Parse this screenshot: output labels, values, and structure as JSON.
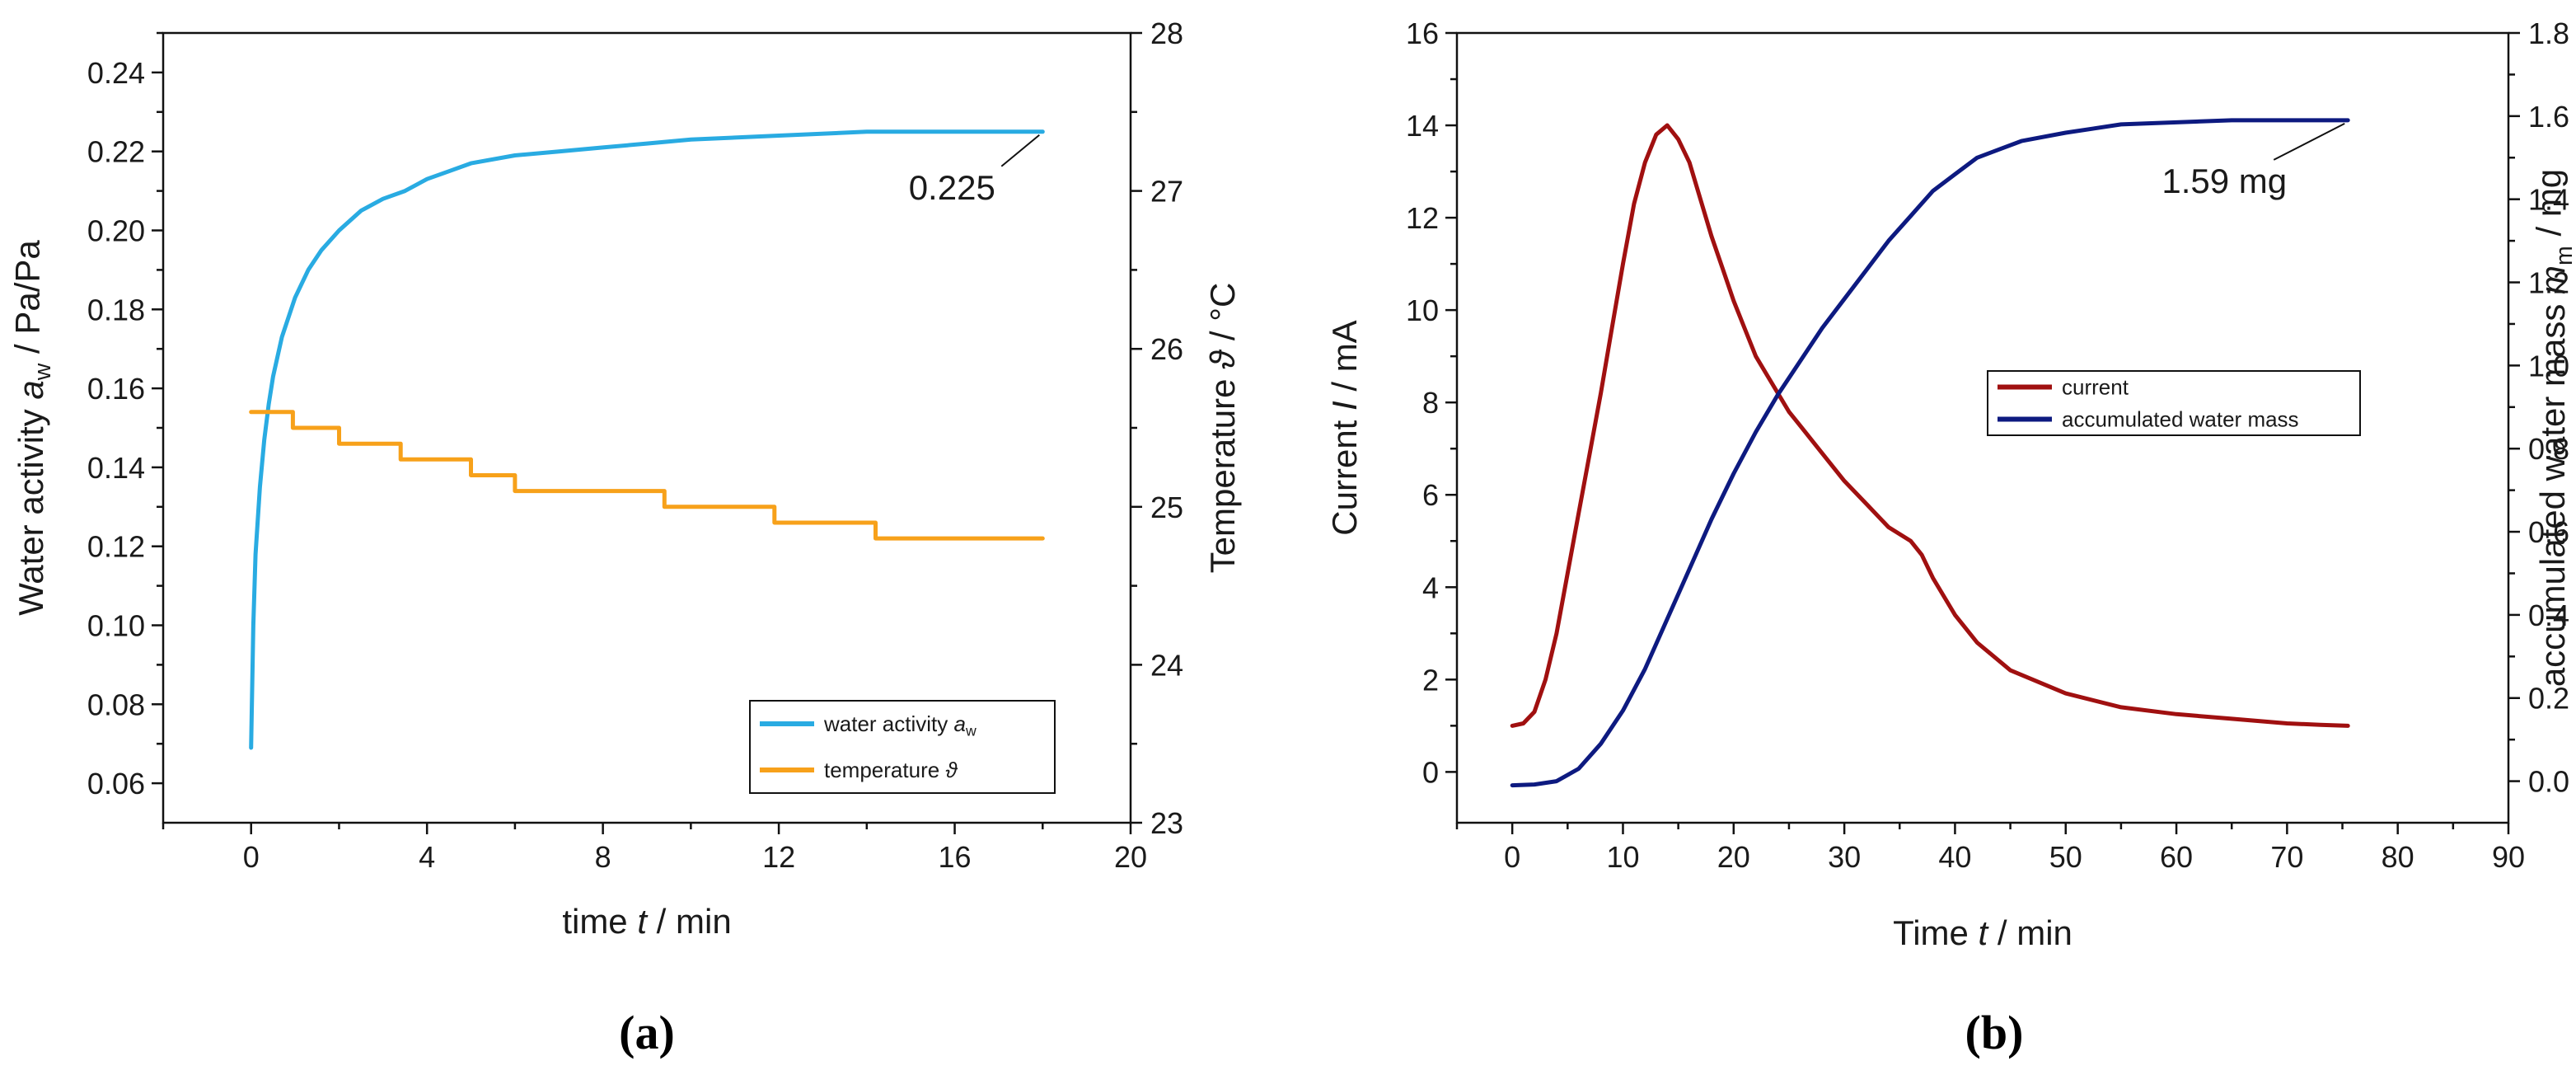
{
  "chart_data": [
    {
      "id": "a",
      "type": "line",
      "panel_label": "(a)",
      "xlabel": {
        "pre": "time ",
        "var": "t",
        "post": " / min"
      },
      "ylabel_left": {
        "pre": "Water activity ",
        "var": "a",
        "sub": "w",
        "post": " / Pa/Pa"
      },
      "ylabel_right": {
        "pre": "Temperature ",
        "var": "ϑ",
        "post": " / °C"
      },
      "xlim": [
        -2,
        20
      ],
      "ylim_left": [
        0.05,
        0.25
      ],
      "ylim_right": [
        23,
        28
      ],
      "xticks": [
        0,
        4,
        8,
        12,
        16,
        20
      ],
      "xtick_labels": [
        "0",
        "4",
        "8",
        "12",
        "16",
        "20"
      ],
      "yticks_left": [
        0.06,
        0.08,
        0.1,
        0.12,
        0.14,
        0.16,
        0.18,
        0.2,
        0.22,
        0.24
      ],
      "ytick_labels_left": [
        "0.06",
        "0.08",
        "0.10",
        "0.12",
        "0.14",
        "0.16",
        "0.18",
        "0.20",
        "0.22",
        "0.24"
      ],
      "yticks_right": [
        23,
        24,
        25,
        26,
        27,
        28
      ],
      "ytick_labels_right": [
        "23",
        "24",
        "25",
        "26",
        "27",
        "28"
      ],
      "legend_position": "bottom-right",
      "series": [
        {
          "name": "water activity",
          "legend": {
            "pre": "water activity ",
            "var": "a",
            "sub": "w"
          },
          "axis": "left",
          "color": "#29abe2",
          "x": [
            0,
            0.05,
            0.1,
            0.2,
            0.3,
            0.4,
            0.5,
            0.7,
            1.0,
            1.3,
            1.6,
            2.0,
            2.5,
            3.0,
            3.5,
            4.0,
            4.5,
            5.0,
            6.0,
            7.0,
            8.0,
            9.0,
            10.0,
            12.0,
            14.0,
            16.0,
            18.0
          ],
          "y": [
            0.069,
            0.1,
            0.118,
            0.135,
            0.147,
            0.156,
            0.163,
            0.173,
            0.183,
            0.19,
            0.195,
            0.2,
            0.205,
            0.208,
            0.21,
            0.213,
            0.215,
            0.217,
            0.219,
            0.22,
            0.221,
            0.222,
            0.223,
            0.224,
            0.225,
            0.225,
            0.225
          ]
        },
        {
          "name": "temperature",
          "legend": {
            "pre": "temperature ",
            "var": "ϑ",
            "sub": ""
          },
          "axis": "right",
          "color": "#f7a11a",
          "x": [
            0,
            0.95,
            0.95,
            2.0,
            2.0,
            3.4,
            3.4,
            5.0,
            5.0,
            6.0,
            6.0,
            9.4,
            9.4,
            11.9,
            11.9,
            14.2,
            14.2,
            18.0
          ],
          "y": [
            25.6,
            25.6,
            25.5,
            25.5,
            25.4,
            25.4,
            25.3,
            25.3,
            25.2,
            25.2,
            25.1,
            25.1,
            25.0,
            25.0,
            24.9,
            24.9,
            24.8,
            24.8
          ]
        }
      ],
      "annotations": [
        {
          "text": "0.225",
          "x": 18.0,
          "y": 0.225,
          "axis": "left"
        }
      ]
    },
    {
      "id": "b",
      "type": "line",
      "panel_label": "(b)",
      "xlabel": {
        "pre": "Time ",
        "var": "t",
        "post": " / min"
      },
      "ylabel_left": {
        "pre": "Current ",
        "var": "I",
        "sub": "",
        "post": " / mA"
      },
      "ylabel_right": {
        "pre": "accumulated water mass ",
        "var": "m",
        "sub": "m",
        "post": " / mg"
      },
      "xlim": [
        -5,
        90
      ],
      "ylim_left": [
        -1.1,
        16
      ],
      "ylim_right": [
        -0.1,
        1.8
      ],
      "xticks": [
        0,
        10,
        20,
        30,
        40,
        50,
        60,
        70,
        80,
        90
      ],
      "xtick_labels": [
        "0",
        "10",
        "20",
        "30",
        "40",
        "50",
        "60",
        "70",
        "80",
        "90"
      ],
      "yticks_left": [
        0,
        2,
        4,
        6,
        8,
        10,
        12,
        14,
        16
      ],
      "ytick_labels_left": [
        "0",
        "2",
        "4",
        "6",
        "8",
        "10",
        "12",
        "14",
        "16"
      ],
      "yticks_right": [
        0.0,
        0.2,
        0.4,
        0.6,
        0.8,
        1.0,
        1.2,
        1.4,
        1.6,
        1.8
      ],
      "ytick_labels_right": [
        "0.0",
        "0.2",
        "0.4",
        "0.6",
        "0.8",
        "1.0",
        "1.2",
        "1.4",
        "1.6",
        "1.8"
      ],
      "legend_position": "center-right",
      "series": [
        {
          "name": "current",
          "legend": {
            "pre": "current",
            "var": "",
            "sub": ""
          },
          "axis": "left",
          "color": "#a01010",
          "x": [
            0,
            1,
            2,
            3,
            4,
            5,
            6,
            7,
            8,
            9,
            10,
            11,
            12,
            13,
            14,
            15,
            16,
            17,
            18,
            19,
            20,
            21,
            22,
            23,
            24,
            25,
            26,
            28,
            30,
            32,
            34,
            36,
            37,
            38,
            40,
            42,
            45,
            50,
            55,
            60,
            65,
            70,
            73,
            75.5
          ],
          "y": [
            1.0,
            1.05,
            1.3,
            2.0,
            3.0,
            4.3,
            5.6,
            6.9,
            8.2,
            9.6,
            11.0,
            12.3,
            13.2,
            13.8,
            14.0,
            13.7,
            13.2,
            12.4,
            11.6,
            10.9,
            10.2,
            9.6,
            9.0,
            8.6,
            8.2,
            7.8,
            7.5,
            6.9,
            6.3,
            5.8,
            5.3,
            5.0,
            4.7,
            4.2,
            3.4,
            2.8,
            2.2,
            1.7,
            1.4,
            1.25,
            1.15,
            1.05,
            1.02,
            1.0
          ]
        },
        {
          "name": "accumulated water mass",
          "legend": {
            "pre": "accumulated water mass",
            "var": "",
            "sub": ""
          },
          "axis": "right",
          "color": "#0d1a80",
          "x": [
            0,
            2,
            4,
            6,
            8,
            10,
            12,
            14,
            16,
            18,
            20,
            22,
            24,
            26,
            28,
            30,
            32,
            34,
            36,
            38,
            40,
            42,
            44,
            46,
            50,
            55,
            60,
            65,
            70,
            75.5
          ],
          "y": [
            -0.01,
            -0.008,
            0.0,
            0.03,
            0.09,
            0.17,
            0.27,
            0.39,
            0.51,
            0.63,
            0.74,
            0.84,
            0.93,
            1.01,
            1.09,
            1.16,
            1.23,
            1.3,
            1.36,
            1.42,
            1.46,
            1.5,
            1.52,
            1.54,
            1.56,
            1.58,
            1.585,
            1.59,
            1.59,
            1.59
          ]
        }
      ],
      "annotations": [
        {
          "text": "1.59 mg",
          "x": 75.5,
          "y": 1.59,
          "axis": "right"
        }
      ]
    }
  ]
}
